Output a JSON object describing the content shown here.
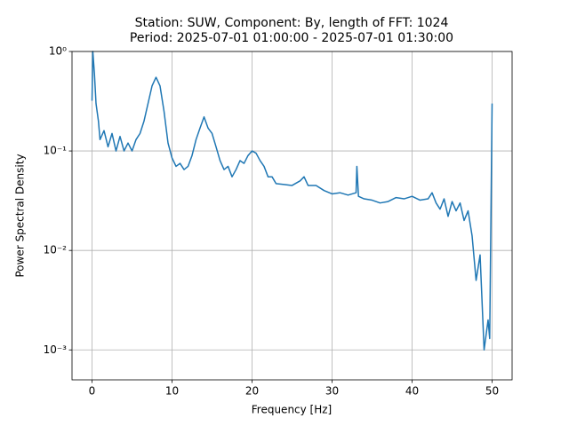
{
  "chart_data": {
    "type": "line",
    "title": [
      "Station: SUW, Component: By, length of FFT: 1024",
      "Period: 2025-07-01 01:00:00 - 2025-07-01 01:30:00"
    ],
    "x_label": "Frequency [Hz]",
    "y_label": "Power Spectral Density",
    "x": [
      0,
      0.1,
      0.3,
      0.5,
      0.8,
      1,
      1.5,
      2,
      2.5,
      3,
      3.5,
      4,
      4.5,
      5,
      5.5,
      6,
      6.5,
      7,
      7.5,
      8,
      8.5,
      9,
      9.5,
      10,
      10.5,
      11,
      11.5,
      12,
      12.5,
      13,
      13.5,
      14,
      14.5,
      15,
      15.5,
      16,
      16.5,
      17,
      17.5,
      18,
      18.5,
      19,
      19.5,
      20,
      20.5,
      21,
      21.5,
      22,
      22.5,
      23,
      24,
      25,
      26,
      26.5,
      27,
      28,
      29,
      30,
      31,
      32,
      33,
      33.1,
      33.3,
      34,
      35,
      36,
      37,
      38,
      39,
      40,
      41,
      42,
      42.5,
      43,
      43.5,
      44,
      44.5,
      45,
      45.5,
      46,
      46.5,
      47,
      47.5,
      48,
      48.5,
      49,
      49.5,
      49.7,
      50
    ],
    "series": [
      {
        "name": "PSD",
        "color": "#1f77b4",
        "values": [
          0.32,
          1.0,
          0.6,
          0.3,
          0.2,
          0.13,
          0.16,
          0.11,
          0.15,
          0.1,
          0.14,
          0.1,
          0.12,
          0.1,
          0.13,
          0.15,
          0.2,
          0.3,
          0.45,
          0.55,
          0.45,
          0.25,
          0.12,
          0.085,
          0.07,
          0.075,
          0.065,
          0.07,
          0.09,
          0.13,
          0.17,
          0.22,
          0.17,
          0.15,
          0.11,
          0.08,
          0.065,
          0.07,
          0.055,
          0.065,
          0.08,
          0.075,
          0.09,
          0.1,
          0.095,
          0.08,
          0.07,
          0.055,
          0.055,
          0.047,
          0.046,
          0.045,
          0.05,
          0.055,
          0.045,
          0.045,
          0.04,
          0.037,
          0.038,
          0.036,
          0.038,
          0.07,
          0.035,
          0.033,
          0.032,
          0.03,
          0.031,
          0.034,
          0.033,
          0.035,
          0.032,
          0.033,
          0.038,
          0.03,
          0.026,
          0.033,
          0.022,
          0.031,
          0.025,
          0.03,
          0.02,
          0.025,
          0.014,
          0.005,
          0.009,
          0.001,
          0.002,
          0.0013,
          0.3
        ]
      }
    ],
    "xlim": [
      -2.5,
      52.5
    ],
    "xticks": [
      0,
      10,
      20,
      30,
      40,
      50
    ],
    "ylim": [
      0.0005,
      1
    ],
    "log_y": true,
    "yticks": [
      {
        "value": 1,
        "label": "10⁰"
      },
      {
        "value": 0.1,
        "label": "10⁻¹"
      },
      {
        "value": 0.01,
        "label": "10⁻²"
      },
      {
        "value": 0.001,
        "label": "10⁻³"
      }
    ],
    "grid": true
  }
}
